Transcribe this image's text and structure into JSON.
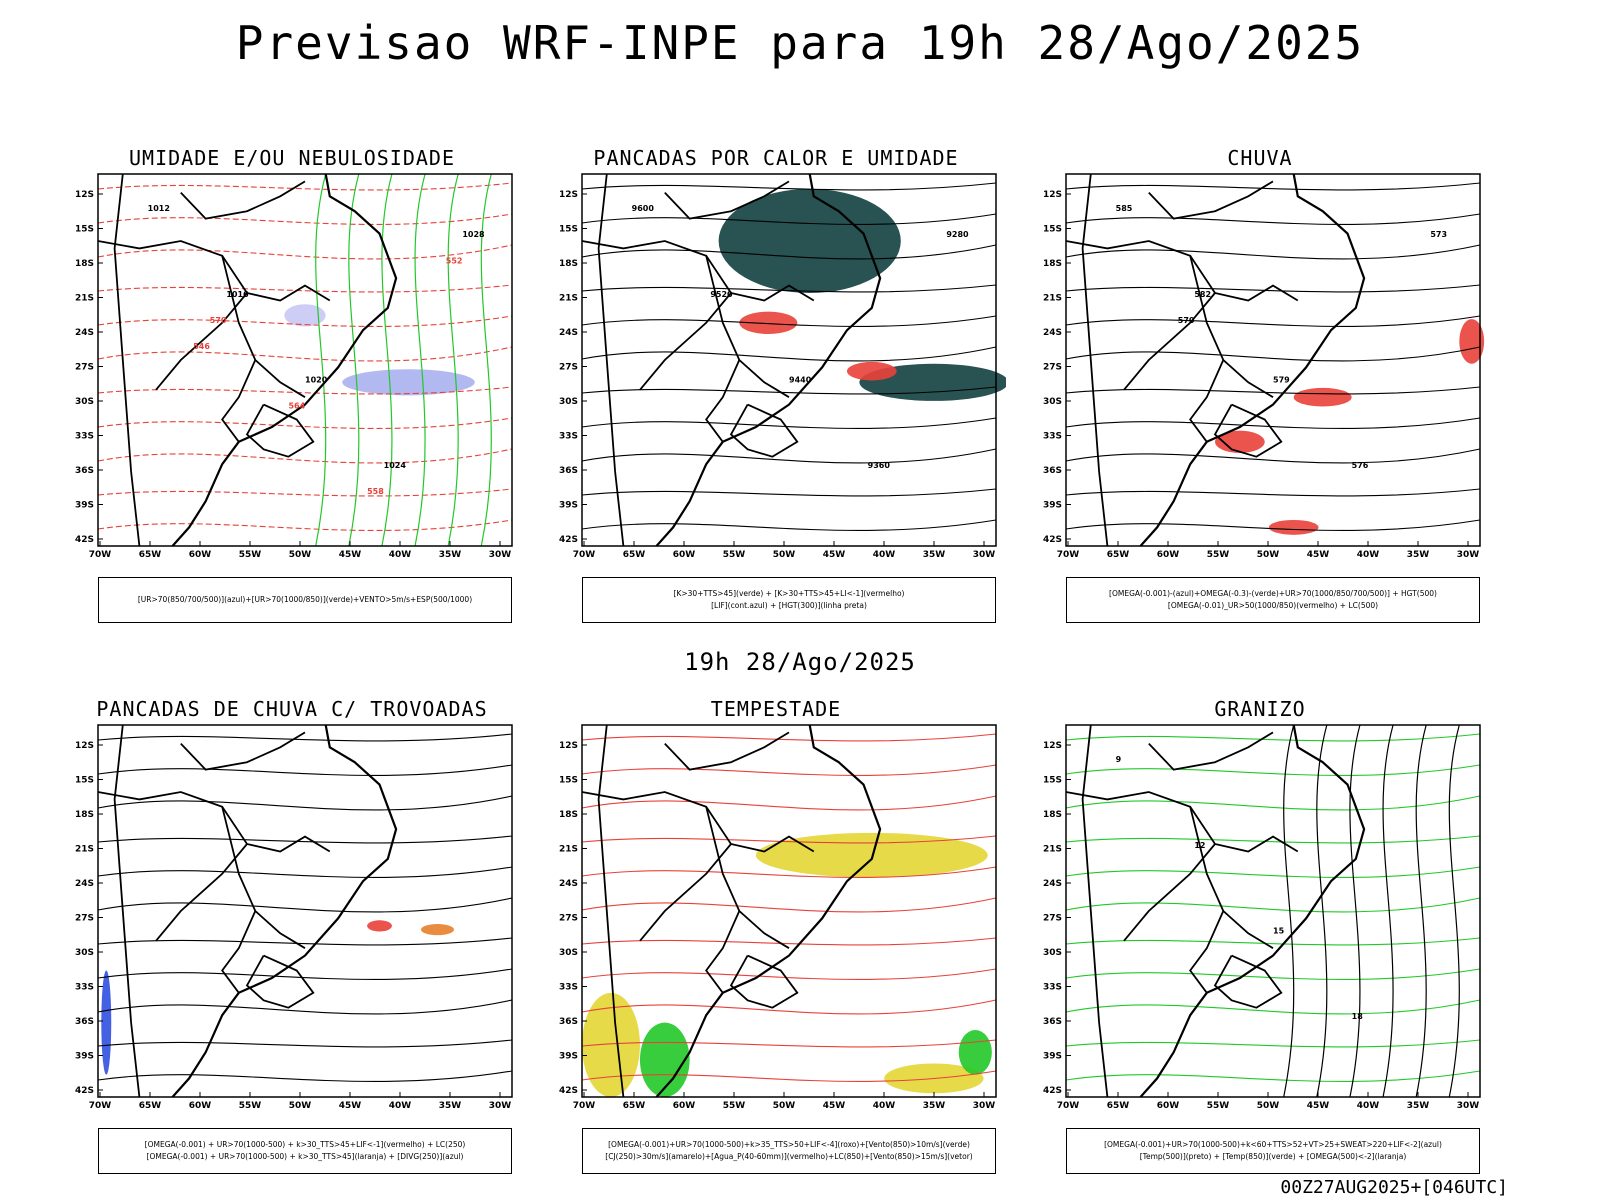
{
  "header": {
    "title": "Previsao WRF-INPE  para 19h 28/Ago/2025"
  },
  "mid": {
    "time": "19h 28/Ago/2025"
  },
  "footer": {
    "run": "00Z27AUG2025+[046UTC]"
  },
  "axes": {
    "lat": [
      "12S",
      "15S",
      "18S",
      "21S",
      "24S",
      "27S",
      "30S",
      "33S",
      "36S",
      "39S",
      "42S"
    ],
    "lon": [
      "70W",
      "65W",
      "60W",
      "55W",
      "50W",
      "45W",
      "40W",
      "35W",
      "30W"
    ]
  },
  "panels": [
    {
      "title": "UMIDADE E/OU NEBULOSIDADE",
      "legend": [
        "[UR>70(850/700/500)](azul)+[UR>70(1000/850)](verde)+VENTO>5m/s+ESP(500/1000)"
      ],
      "labels": [
        "1012",
        "1016",
        "1020",
        "1024",
        "1028",
        "570",
        "564",
        "558",
        "552",
        "546"
      ]
    },
    {
      "title": "PANCADAS POR CALOR E UMIDADE",
      "legend": [
        "[K>30+TTS>45](verde) + [K>30+TTS>45+LI<-1](vermelho)",
        "[LIF](cont.azul) + [HGT(300)](linha preta)"
      ],
      "labels": [
        "9600",
        "9520",
        "9440",
        "9360",
        "9280"
      ]
    },
    {
      "title": "CHUVA",
      "legend": [
        "[OMEGA(-0.001)-(azul)+OMEGA(-0.3)-(verde)+UR>70(1000/850/700/500)] + HGT(500)",
        "[OMEGA(-0.01)_UR>50(1000/850)(vermelho) + LC(500)"
      ],
      "labels": [
        "585",
        "582",
        "579",
        "576",
        "573",
        "570"
      ]
    },
    {
      "title": "PANCADAS DE CHUVA C/ TROVOADAS",
      "legend": [
        "[OMEGA(-0.001) + UR>70(1000-500) + k>30_TTS>45+LIF<-1](vermelho) + LC(250)",
        "[OMEGA(-0.001) + UR>70(1000-500) + k>30_TTS>45](laranja) + [DIVG(250)](azul)"
      ],
      "labels": []
    },
    {
      "title": "TEMPESTADE",
      "legend": [
        "[OMEGA(-0.001)+UR>70(1000-500)+k>35_TTS>50+LIF<-4](roxo)+[Vento(850)>10m/s](verde)",
        "[CJ(250)>30m/s](amarelo)+[Agua_P(40-60mm)](vermelho)+LC(850)+[Vento(850)>15m/s](vetor)"
      ],
      "labels": []
    },
    {
      "title": "GRANIZO",
      "legend": [
        "[OMEGA(-0.001)+UR>70(1000-500)+k<60+TTS>52+VT>25+SWEAT>220+LIF<-2](azul)",
        "[Temp(500)](preto) + [Temp(850)](verde) + [OMEGA(500)<-2](laranja)"
      ],
      "labels": [
        "9",
        "12",
        "15",
        "18"
      ]
    }
  ]
}
